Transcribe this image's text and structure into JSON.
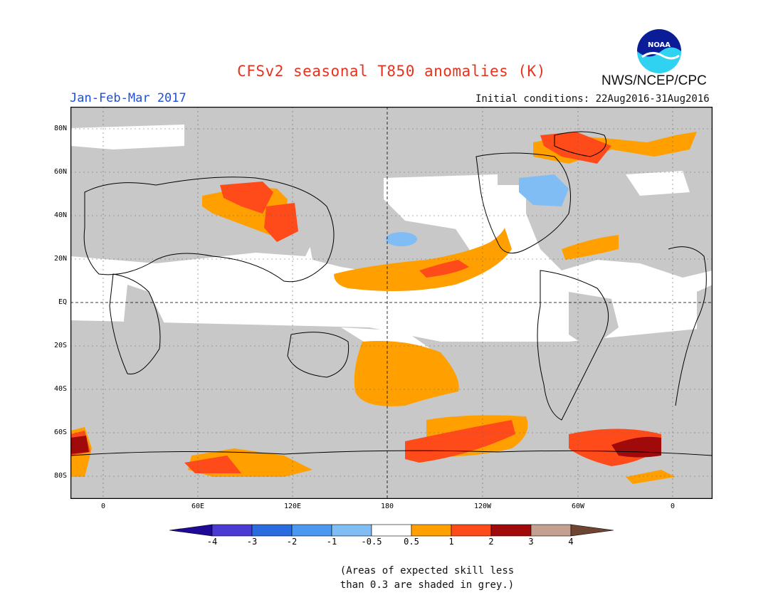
{
  "header": {
    "title": "CFSv2 seasonal T850 anomalies (K)",
    "agency": "NWS/NCEP/CPC",
    "logo_text": "NOAA",
    "season": "Jan-Feb-Mar 2017",
    "initial_conditions": "Initial conditions: 22Aug2016-31Aug2016"
  },
  "map": {
    "lat_labels": [
      "80N",
      "60N",
      "40N",
      "20N",
      "EQ",
      "20S",
      "40S",
      "60S",
      "80S"
    ],
    "lon_labels": [
      "0",
      "60E",
      "120E",
      "180",
      "120W",
      "60W",
      "0"
    ],
    "colors": {
      "land_outline": "#000000",
      "skill_grey": "#c8c8c8",
      "background": "#ffffff"
    }
  },
  "colorbar": {
    "labels": [
      "-4",
      "-3",
      "-2",
      "-1",
      "-0.5",
      "0.5",
      "1",
      "2",
      "3",
      "4"
    ],
    "colors": [
      "#1e0a96",
      "#4a3cd2",
      "#2a6be0",
      "#4a98f0",
      "#80bdf5",
      "#ffffff",
      "#ffa000",
      "#ff4a1a",
      "#a00a0a",
      "#c4a090",
      "#6e4432"
    ]
  },
  "note": {
    "line1": "(Areas of expected skill less",
    "line2": "than 0.3 are shaded in grey.)"
  }
}
